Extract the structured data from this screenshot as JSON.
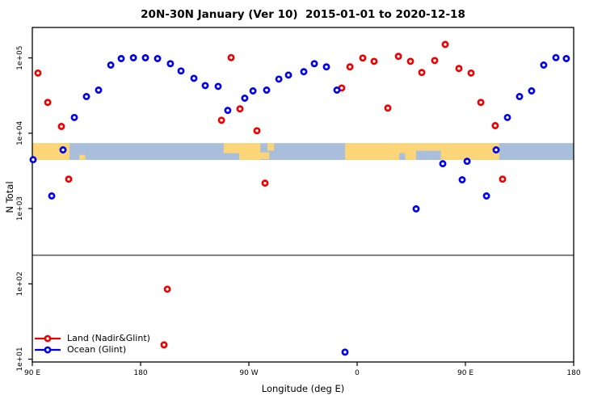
{
  "chart_data": {
    "type": "scatter",
    "title": "20N-30N January (Ver 10)  2015-01-01 to 2020-12-18",
    "xlabel": "Longitude (deg E)",
    "ylabel": "N Total",
    "x_axis": {
      "range": [
        90,
        540
      ],
      "ticks": [
        {
          "pos": 90,
          "label": "90 E"
        },
        {
          "pos": 180,
          "label": "180"
        },
        {
          "pos": 270,
          "label": "90 W"
        },
        {
          "pos": 360,
          "label": "0"
        },
        {
          "pos": 450,
          "label": "90 E"
        },
        {
          "pos": 540,
          "label": "180"
        }
      ]
    },
    "y_axis": {
      "scale": "log",
      "range": [
        10,
        220000
      ],
      "ticks": [
        {
          "value": 10,
          "label": "1e+01"
        },
        {
          "value": 100,
          "label": "1e+02"
        },
        {
          "value": 1000,
          "label": "1e+03"
        },
        {
          "value": 10000,
          "label": "1e+04"
        },
        {
          "value": 100000,
          "label": "1e+05"
        }
      ]
    },
    "colors": {
      "land": "#ee0000",
      "ocean": "#0000ee",
      "map_land": "#fcd578",
      "map_ocean": "#a8bedb",
      "ref_line": "#7f7f7f",
      "frame": "#000000"
    },
    "reference_line": {
      "value": 240
    },
    "map_band": {
      "value_top": 7400,
      "value_bottom": 4420,
      "patches": [
        {
          "type": "land",
          "lon": [
            90,
            121
          ],
          "frac": [
            0,
            1
          ]
        },
        {
          "type": "land",
          "lon": [
            129,
            134
          ],
          "frac": [
            0.7,
            1
          ]
        },
        {
          "type": "land",
          "lon": [
            249,
            263.5
          ],
          "frac": [
            0,
            0.6
          ]
        },
        {
          "type": "land",
          "lon": [
            262,
            279.5
          ],
          "frac": [
            0,
            1
          ]
        },
        {
          "type": "land",
          "lon": [
            276,
            287
          ],
          "frac": [
            0.55,
            0.95
          ]
        },
        {
          "type": "land",
          "lon": [
            285.5,
            291
          ],
          "frac": [
            0,
            0.45
          ]
        },
        {
          "type": "land",
          "lon": [
            350,
            478
          ],
          "frac": [
            0,
            1
          ]
        },
        {
          "type": "water",
          "lon": [
            395,
            400
          ],
          "frac": [
            0.6,
            1
          ]
        },
        {
          "type": "water",
          "lon": [
            409,
            429.5
          ],
          "frac": [
            0.45,
            1
          ]
        }
      ]
    },
    "series": [
      {
        "name": "Land (Nadir&Glint)",
        "color_key": "land",
        "points": [
          [
            94.7,
            63000
          ],
          [
            102.8,
            25700
          ],
          [
            114.2,
            12300
          ],
          [
            120.2,
            2460
          ],
          [
            247.2,
            14900
          ],
          [
            255.2,
            101000
          ],
          [
            262.6,
            21100
          ],
          [
            276.7,
            10800
          ],
          [
            283.4,
            2180
          ],
          [
            347.2,
            39900
          ],
          [
            354.0,
            76200
          ],
          [
            364.7,
            99800
          ],
          [
            374.1,
            90200
          ],
          [
            385.5,
            21600
          ],
          [
            394.3,
            105000
          ],
          [
            404.3,
            90200
          ],
          [
            413.7,
            64100
          ],
          [
            424.5,
            92500
          ],
          [
            433.2,
            151000
          ],
          [
            444.6,
            72600
          ],
          [
            454.7,
            63000
          ],
          [
            462.8,
            25700
          ],
          [
            474.8,
            12600
          ],
          [
            480.9,
            2460
          ],
          [
            202.2,
            85
          ],
          [
            199.5,
            15.5
          ]
        ]
      },
      {
        "name": "Ocean (Glint)",
        "color_key": "ocean",
        "points": [
          [
            90.7,
            4460
          ],
          [
            106.1,
            1470
          ],
          [
            115.5,
            6010
          ],
          [
            124.9,
            16200
          ],
          [
            135.0,
            30700
          ],
          [
            145.1,
            37400
          ],
          [
            155.2,
            80400
          ],
          [
            163.9,
            98000
          ],
          [
            174.0,
            100500
          ],
          [
            184.0,
            100500
          ],
          [
            194.1,
            98000
          ],
          [
            204.8,
            84000
          ],
          [
            213.6,
            67200
          ],
          [
            224.3,
            53700
          ],
          [
            233.7,
            43000
          ],
          [
            244.5,
            41900
          ],
          [
            252.5,
            20100
          ],
          [
            266.6,
            29200
          ],
          [
            273.4,
            36500
          ],
          [
            284.8,
            37400
          ],
          [
            294.9,
            52400
          ],
          [
            302.9,
            59300
          ],
          [
            315.7,
            65700
          ],
          [
            324.4,
            84000
          ],
          [
            334.5,
            76200
          ],
          [
            343.2,
            37400
          ],
          [
            409.0,
            990
          ],
          [
            431.2,
            3940
          ],
          [
            447.3,
            2410
          ],
          [
            451.4,
            4240
          ],
          [
            467.5,
            1470
          ],
          [
            475.5,
            6010
          ],
          [
            484.9,
            16200
          ],
          [
            495.0,
            30700
          ],
          [
            505.0,
            36500
          ],
          [
            515.1,
            80400
          ],
          [
            525.2,
            101000
          ],
          [
            533.9,
            98000
          ],
          [
            349.9,
            12.4
          ]
        ]
      }
    ]
  }
}
